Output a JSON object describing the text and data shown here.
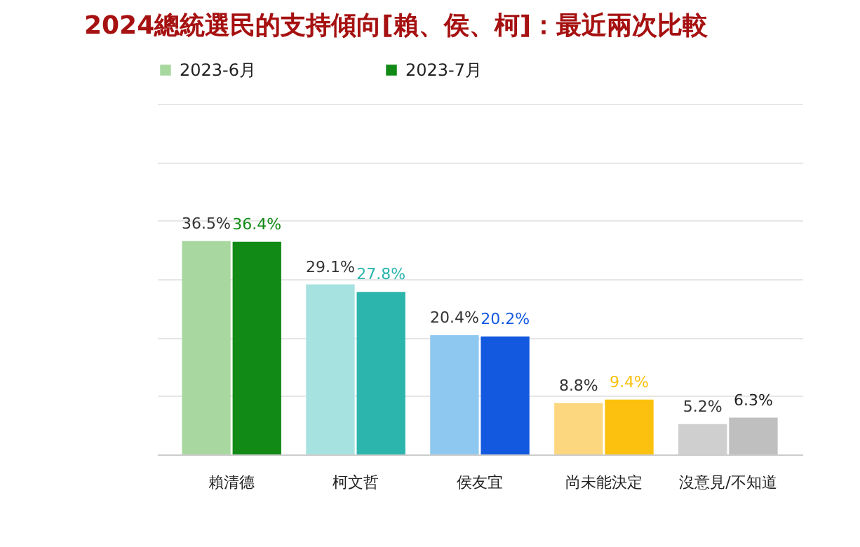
{
  "chart_data": {
    "type": "bar",
    "title": "2024總統選民的支持傾向[賴、侯、柯]：最近兩次比較",
    "categories": [
      "賴清德",
      "柯文哲",
      "侯友宜",
      "尚未能決定",
      "沒意見/不知道"
    ],
    "series": [
      {
        "name": "2023-6月",
        "color": "#a8d8a0",
        "colors": [
          "#a8d8a0",
          "#a6e3e0",
          "#8ec8f0",
          "#fcd77f",
          "#cfcfcf"
        ],
        "values": [
          36.5,
          29.1,
          20.4,
          8.8,
          5.2
        ],
        "value_labels": [
          "36.5%",
          "29.1%",
          "20.4%",
          "8.8%",
          "5.2%"
        ]
      },
      {
        "name": "2023-7月",
        "color": "#118a16",
        "colors": [
          "#118a16",
          "#2bb5ad",
          "#1259e0",
          "#fcc10f",
          "#bfbfbf"
        ],
        "values": [
          36.4,
          27.8,
          20.2,
          9.4,
          6.3
        ],
        "value_labels": [
          "36.4%",
          "27.8%",
          "20.2%",
          "9.4%",
          "6.3%"
        ]
      }
    ],
    "ylim": [
      0,
      60
    ],
    "data_labels": true,
    "grid": "y",
    "legend": "top",
    "tick_labels": "x"
  }
}
